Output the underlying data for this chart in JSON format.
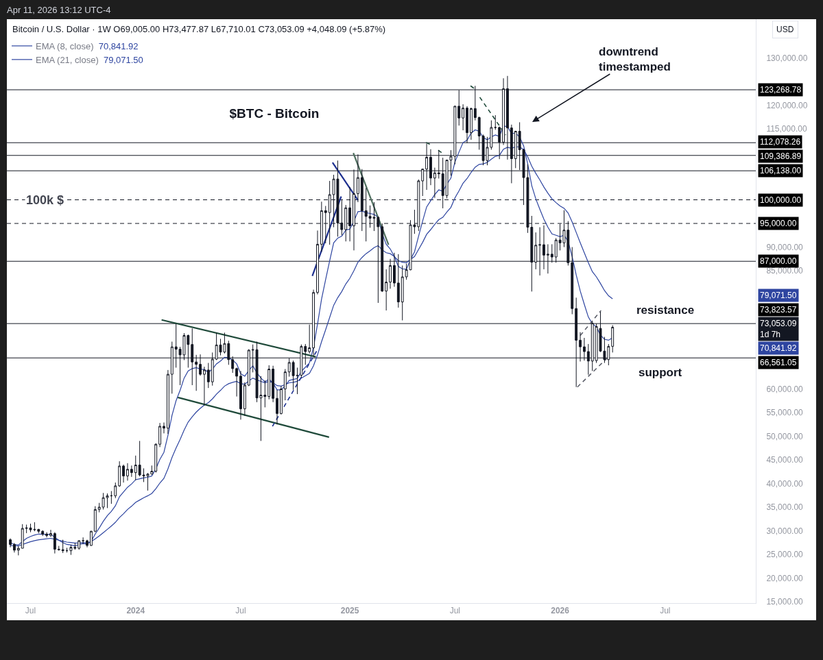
{
  "chart_data": {
    "type": "candlestick",
    "title": "$BTC - Bitcoin",
    "subtitle": "Bitcoin / U.S. Dollar · 1W O69,005.00 H73,477.87 L67,710.01 C73,053.09 +4,048.09 (+5.87%)",
    "ylabel": "USD",
    "legend": "top left",
    "annotations": [
      "Apr 11, 2026 13:12 UTC-4",
      {
        "text": "100k $",
        "x": "2023-07-28",
        "y": 100000
      },
      "downtrend\ntimestamped",
      "resistance",
      "support",
      "70,841.92",
      "79,071.50"
    ],
    "xlim": [
      "2023-05-23",
      "2026-12-10"
    ],
    "ylim": [
      14700,
      138200
    ],
    "xticks": [
      {
        "value": "2023-07-03",
        "label": "Jul"
      },
      {
        "value": "2024-01-01",
        "label": "2024"
      },
      {
        "value": "2024-07-01",
        "label": "Jul"
      },
      {
        "value": "2025-01-06",
        "label": "2025"
      },
      {
        "value": "2025-07-07",
        "label": "Jul"
      },
      {
        "value": "2026-01-05",
        "label": "2026"
      },
      {
        "value": "2026-07-06",
        "label": "Jul"
      }
    ],
    "yticks": [
      {
        "value": 130000,
        "label": "130,000.00"
      },
      {
        "value": 120000,
        "label": "120,000.00"
      },
      {
        "value": 115000,
        "label": "115,000.00"
      },
      {
        "value": 90000,
        "label": "90,000.00"
      },
      {
        "value": 85000,
        "label": "85,000.00"
      },
      {
        "value": 60000,
        "label": "60,000.00"
      },
      {
        "value": 55000,
        "label": "55,000.00"
      },
      {
        "value": 50000,
        "label": "50,000.00"
      },
      {
        "value": 45000,
        "label": "45,000.00"
      },
      {
        "value": 40000,
        "label": "40,000.00"
      },
      {
        "value": 35000,
        "label": "35,000.00"
      },
      {
        "value": 30000,
        "label": "30,000.00"
      },
      {
        "value": 25000,
        "label": "25,000.00"
      },
      {
        "value": 20000,
        "label": "20,000.00"
      },
      {
        "value": 15000,
        "label": "15,000.00"
      }
    ],
    "ref_lines": [
      {
        "axis": "y",
        "value": 123268.78,
        "label": "123,268.78"
      },
      {
        "axis": "y",
        "value": 112078.26,
        "label": "112,078.26"
      },
      {
        "axis": "y",
        "value": 109386.89,
        "label": "109,386.89"
      },
      {
        "axis": "y",
        "value": 106138.0,
        "label": "106,138.00"
      },
      {
        "axis": "y",
        "value": 100000.0,
        "label": "100,000.00",
        "line_style": "dashed"
      },
      {
        "axis": "y",
        "value": 95000.0,
        "label": "95,000.00",
        "line_style": "dashed"
      },
      {
        "axis": "y",
        "value": 87000.0,
        "label": "87,000.00"
      },
      {
        "axis": "y",
        "value": 73823.57,
        "label": "73,823.57"
      },
      {
        "axis": "y",
        "value": 66561.05,
        "label": "66,561.05"
      }
    ],
    "x": [
      "2023-05-29",
      "2023-06-05",
      "2023-06-12",
      "2023-06-19",
      "2023-06-26",
      "2023-07-03",
      "2023-07-10",
      "2023-07-17",
      "2023-07-24",
      "2023-07-31",
      "2023-08-07",
      "2023-08-14",
      "2023-08-21",
      "2023-08-28",
      "2023-09-04",
      "2023-09-11",
      "2023-09-18",
      "2023-09-25",
      "2023-10-02",
      "2023-10-09",
      "2023-10-16",
      "2023-10-23",
      "2023-10-30",
      "2023-11-06",
      "2023-11-13",
      "2023-11-20",
      "2023-11-27",
      "2023-12-04",
      "2023-12-11",
      "2023-12-18",
      "2023-12-25",
      "2024-01-01",
      "2024-01-08",
      "2024-01-15",
      "2024-01-22",
      "2024-01-29",
      "2024-02-05",
      "2024-02-12",
      "2024-02-19",
      "2024-02-26",
      "2024-03-04",
      "2024-03-11",
      "2024-03-18",
      "2024-03-25",
      "2024-04-01",
      "2024-04-08",
      "2024-04-15",
      "2024-04-22",
      "2024-04-29",
      "2024-05-06",
      "2024-05-13",
      "2024-05-20",
      "2024-05-27",
      "2024-06-03",
      "2024-06-10",
      "2024-06-17",
      "2024-06-24",
      "2024-07-01",
      "2024-07-08",
      "2024-07-15",
      "2024-07-22",
      "2024-07-29",
      "2024-08-05",
      "2024-08-12",
      "2024-08-19",
      "2024-08-26",
      "2024-09-02",
      "2024-09-09",
      "2024-09-16",
      "2024-09-23",
      "2024-09-30",
      "2024-10-07",
      "2024-10-14",
      "2024-10-21",
      "2024-10-28",
      "2024-11-04",
      "2024-11-11",
      "2024-11-18",
      "2024-11-25",
      "2024-12-02",
      "2024-12-09",
      "2024-12-16",
      "2024-12-23",
      "2024-12-30",
      "2025-01-06",
      "2025-01-13",
      "2025-01-20",
      "2025-01-27",
      "2025-02-03",
      "2025-02-10",
      "2025-02-17",
      "2025-02-24",
      "2025-03-03",
      "2025-03-10",
      "2025-03-17",
      "2025-03-24",
      "2025-03-31",
      "2025-04-07",
      "2025-04-14",
      "2025-04-21",
      "2025-04-28",
      "2025-05-05",
      "2025-05-12",
      "2025-05-19",
      "2025-05-26",
      "2025-06-02",
      "2025-06-09",
      "2025-06-16",
      "2025-06-23",
      "2025-06-30",
      "2025-07-07",
      "2025-07-14",
      "2025-07-21",
      "2025-07-28",
      "2025-08-04",
      "2025-08-11",
      "2025-08-18",
      "2025-08-25",
      "2025-09-01",
      "2025-09-08",
      "2025-09-15",
      "2025-09-22",
      "2025-09-29",
      "2025-10-06",
      "2025-10-13",
      "2025-10-20",
      "2025-10-27",
      "2025-11-03",
      "2025-11-10",
      "2025-11-17",
      "2025-11-24",
      "2025-12-01",
      "2025-12-08",
      "2025-12-15",
      "2025-12-22",
      "2025-12-29",
      "2026-01-05",
      "2026-01-12",
      "2026-01-19",
      "2026-01-26",
      "2026-02-02",
      "2026-02-09",
      "2026-02-16",
      "2026-02-23",
      "2026-03-02",
      "2026-03-09",
      "2026-03-16",
      "2026-03-23",
      "2026-03-30",
      "2026-04-06"
    ],
    "ohlc": [
      [
        28100,
        28400,
        26500,
        27100
      ],
      [
        27100,
        27400,
        25400,
        25900
      ],
      [
        25900,
        26800,
        24800,
        26300
      ],
      [
        26300,
        31400,
        26300,
        30500
      ],
      [
        30500,
        31300,
        29500,
        30600
      ],
      [
        30600,
        31500,
        29700,
        30200
      ],
      [
        30200,
        31800,
        29900,
        30300
      ],
      [
        30300,
        30400,
        29500,
        29900
      ],
      [
        29900,
        30100,
        28900,
        29300
      ],
      [
        29300,
        29700,
        28600,
        29000
      ],
      [
        29000,
        30200,
        28700,
        29400
      ],
      [
        29400,
        29700,
        25200,
        26100
      ],
      [
        26100,
        26800,
        25800,
        26000
      ],
      [
        26000,
        28100,
        25300,
        25800
      ],
      [
        25800,
        26400,
        25400,
        25800
      ],
      [
        25800,
        27000,
        24900,
        26500
      ],
      [
        26500,
        27400,
        26000,
        26300
      ],
      [
        26300,
        28000,
        26000,
        27900
      ],
      [
        27900,
        28600,
        27200,
        27900
      ],
      [
        27900,
        28100,
        26500,
        26900
      ],
      [
        26900,
        30000,
        26800,
        29900
      ],
      [
        29900,
        35200,
        29700,
        34500
      ],
      [
        34500,
        35900,
        33900,
        35000
      ],
      [
        35000,
        38000,
        34500,
        37000
      ],
      [
        37000,
        37900,
        34800,
        37400
      ],
      [
        37400,
        38400,
        35700,
        37400
      ],
      [
        37400,
        40200,
        36900,
        39500
      ],
      [
        39500,
        44700,
        39300,
        43700
      ],
      [
        43700,
        44000,
        40200,
        41600
      ],
      [
        41600,
        44300,
        40600,
        43000
      ],
      [
        43000,
        43800,
        41400,
        42300
      ],
      [
        42300,
        45900,
        40700,
        43900
      ],
      [
        43900,
        49000,
        41500,
        41800
      ],
      [
        41800,
        43200,
        40300,
        41600
      ],
      [
        41600,
        42200,
        38500,
        42000
      ],
      [
        42000,
        43800,
        41900,
        42600
      ],
      [
        42600,
        48500,
        42300,
        48300
      ],
      [
        48300,
        52800,
        47700,
        52100
      ],
      [
        52100,
        52900,
        50600,
        51700
      ],
      [
        51700,
        64000,
        50500,
        63100
      ],
      [
        63100,
        70000,
        59000,
        68900
      ],
      [
        68900,
        73800,
        64500,
        68400
      ],
      [
        68400,
        68900,
        60800,
        67200
      ],
      [
        67200,
        71800,
        66100,
        71300
      ],
      [
        71300,
        71500,
        64500,
        69400
      ],
      [
        69400,
        72800,
        60800,
        65700
      ],
      [
        65700,
        67200,
        59600,
        65200
      ],
      [
        65200,
        67300,
        62800,
        63100
      ],
      [
        63100,
        64700,
        56500,
        64000
      ],
      [
        64000,
        65500,
        60200,
        61500
      ],
      [
        61500,
        67700,
        60700,
        66300
      ],
      [
        66300,
        71900,
        66100,
        69300
      ],
      [
        69300,
        70600,
        67100,
        67800
      ],
      [
        67800,
        71900,
        67500,
        69600
      ],
      [
        69600,
        70200,
        65100,
        66200
      ],
      [
        66200,
        66900,
        63400,
        64300
      ],
      [
        64300,
        64500,
        58400,
        62700
      ],
      [
        62700,
        63800,
        53500,
        55800
      ],
      [
        55800,
        61400,
        54300,
        60800
      ],
      [
        60800,
        68400,
        60600,
        68200
      ],
      [
        68200,
        69400,
        63500,
        68300
      ],
      [
        68300,
        70000,
        57200,
        58100
      ],
      [
        58100,
        62700,
        49000,
        58700
      ],
      [
        58700,
        61800,
        56100,
        58400
      ],
      [
        58400,
        65000,
        57800,
        64200
      ],
      [
        64200,
        64900,
        57200,
        58000
      ],
      [
        58000,
        59800,
        52500,
        54800
      ],
      [
        54800,
        60600,
        54600,
        60000
      ],
      [
        60000,
        64200,
        57600,
        63600
      ],
      [
        63600,
        66500,
        62600,
        65600
      ],
      [
        65600,
        66000,
        59800,
        62800
      ],
      [
        62800,
        64500,
        58900,
        62900
      ],
      [
        62900,
        69400,
        62400,
        69000
      ],
      [
        69000,
        69500,
        65100,
        67900
      ],
      [
        67900,
        73600,
        67500,
        68700
      ],
      [
        68700,
        81000,
        66800,
        80400
      ],
      [
        80400,
        93500,
        80000,
        90600
      ],
      [
        90600,
        99600,
        89000,
        97700
      ],
      [
        97700,
        98700,
        90800,
        97300
      ],
      [
        97300,
        104000,
        90500,
        101100
      ],
      [
        101100,
        105300,
        94200,
        104400
      ],
      [
        104400,
        108300,
        92200,
        95100
      ],
      [
        95100,
        99900,
        92500,
        93700
      ],
      [
        93700,
        98900,
        91200,
        98300
      ],
      [
        98300,
        102700,
        91200,
        94500
      ],
      [
        94500,
        106400,
        89300,
        101300
      ],
      [
        101300,
        109600,
        99500,
        104700
      ],
      [
        104700,
        106500,
        93400,
        97700
      ],
      [
        97700,
        102500,
        91200,
        96500
      ],
      [
        96500,
        98800,
        94100,
        96100
      ],
      [
        96100,
        99500,
        93400,
        96300
      ],
      [
        96300,
        96500,
        78200,
        94300
      ],
      [
        94300,
        95000,
        80500,
        80700
      ],
      [
        80700,
        85300,
        76600,
        82600
      ],
      [
        82600,
        87500,
        81200,
        86100
      ],
      [
        86100,
        88800,
        81600,
        82400
      ],
      [
        82400,
        88500,
        77200,
        78400
      ],
      [
        78400,
        86100,
        74500,
        83700
      ],
      [
        83700,
        86500,
        83100,
        85200
      ],
      [
        85200,
        95700,
        85100,
        94700
      ],
      [
        94700,
        97900,
        92800,
        94300
      ],
      [
        94300,
        104300,
        93400,
        104000
      ],
      [
        104000,
        106600,
        100800,
        106500
      ],
      [
        106500,
        111900,
        102100,
        109000
      ],
      [
        109000,
        110700,
        103100,
        104600
      ],
      [
        104600,
        106800,
        100400,
        105700
      ],
      [
        105700,
        110500,
        104500,
        105500
      ],
      [
        105500,
        108900,
        98200,
        100900
      ],
      [
        100900,
        108500,
        100300,
        108400
      ],
      [
        108400,
        110500,
        105100,
        109200
      ],
      [
        109200,
        119900,
        107500,
        119800
      ],
      [
        119800,
        123200,
        115700,
        117300
      ],
      [
        117300,
        120200,
        114700,
        119400
      ],
      [
        119400,
        119800,
        112000,
        114200
      ],
      [
        114200,
        119500,
        112700,
        119300
      ],
      [
        119300,
        124100,
        116800,
        117400
      ],
      [
        117400,
        117600,
        110600,
        113500
      ],
      [
        113500,
        113800,
        107300,
        108300
      ],
      [
        108300,
        113300,
        107300,
        111100
      ],
      [
        111100,
        116800,
        110600,
        115300
      ],
      [
        115300,
        117900,
        114800,
        115300
      ],
      [
        115300,
        115500,
        108600,
        112200
      ],
      [
        112200,
        125700,
        111600,
        123500
      ],
      [
        123500,
        126200,
        108500,
        115200
      ],
      [
        115200,
        115900,
        103500,
        108700
      ],
      [
        108700,
        114600,
        106700,
        114500
      ],
      [
        114500,
        116400,
        106300,
        110600
      ],
      [
        110600,
        110800,
        98900,
        104700
      ],
      [
        104700,
        107500,
        93000,
        94200
      ],
      [
        94200,
        96600,
        80600,
        86800
      ],
      [
        86800,
        93100,
        85300,
        90400
      ],
      [
        90400,
        94200,
        84000,
        90500
      ],
      [
        90500,
        94600,
        85300,
        88300
      ],
      [
        88300,
        90600,
        84400,
        88500
      ],
      [
        88500,
        90600,
        86700,
        87900
      ],
      [
        87900,
        91900,
        86700,
        91500
      ],
      [
        91500,
        94900,
        89300,
        90900
      ],
      [
        90900,
        97800,
        90000,
        93600
      ],
      [
        93600,
        95500,
        86100,
        86700
      ],
      [
        86700,
        90000,
        75800,
        77000
      ],
      [
        77000,
        79300,
        60400,
        70300
      ],
      [
        70300,
        72000,
        65800,
        68900
      ],
      [
        68900,
        70800,
        66000,
        67900
      ],
      [
        67900,
        69500,
        63000,
        65900
      ],
      [
        65900,
        74300,
        63800,
        73900
      ],
      [
        66000,
        73800,
        65500,
        73200
      ],
      [
        72800,
        76300,
        67800,
        68000
      ],
      [
        68000,
        71000,
        65500,
        66200
      ],
      [
        66200,
        69500,
        65000,
        69005
      ],
      [
        69005,
        73477.87,
        67710.01,
        73053.09
      ]
    ],
    "value_labels": [
      null,
      null,
      null,
      null,
      null,
      null,
      null,
      null,
      null,
      null,
      null,
      null,
      null,
      null,
      null,
      null,
      null,
      null,
      null,
      null,
      null,
      null,
      null,
      null,
      null,
      null,
      null,
      null,
      null,
      null,
      null,
      null,
      null,
      null,
      null,
      null,
      null,
      null,
      null,
      null,
      null,
      null,
      null,
      null,
      null,
      null,
      null,
      null,
      null,
      null,
      null,
      null,
      null,
      null,
      null,
      null,
      null,
      null,
      null,
      null,
      null,
      null,
      null,
      null,
      null,
      null,
      null,
      null,
      null,
      null,
      null,
      null,
      null,
      null,
      null,
      null,
      null,
      null,
      null,
      null,
      null,
      null,
      null,
      null,
      null,
      null,
      null,
      null,
      null,
      null,
      null,
      null,
      null,
      null,
      null,
      null,
      null,
      null,
      null,
      null,
      null,
      null,
      null,
      null,
      null,
      null,
      null,
      null,
      null,
      null,
      null,
      null,
      null,
      null,
      null,
      null,
      null,
      null,
      null,
      null,
      null,
      null,
      null,
      null,
      null,
      null,
      null,
      null,
      null,
      null,
      null,
      null,
      null,
      null,
      null,
      null,
      null,
      null,
      null,
      null,
      null,
      null,
      null,
      null,
      null,
      null,
      null,
      null,
      null,
      "73,053.09\n1d 7h"
    ],
    "series": [
      {
        "type": "line",
        "name": "EMA (8, close)",
        "color": "#2e45a0",
        "values": [
          27500,
          27100,
          27000,
          27700,
          28400,
          28800,
          29100,
          29300,
          29300,
          29200,
          29300,
          28600,
          28000,
          27500,
          27100,
          27000,
          26800,
          27100,
          27300,
          27200,
          27800,
          29300,
          30600,
          32000,
          33200,
          34100,
          35300,
          37200,
          38200,
          39200,
          39900,
          40800,
          41000,
          41200,
          41300,
          41600,
          43100,
          45100,
          46600,
          50200,
          54400,
          57500,
          59700,
          62300,
          63800,
          64300,
          64500,
          64200,
          64100,
          63500,
          64200,
          65300,
          65900,
          66700,
          66600,
          66100,
          65300,
          63200,
          62700,
          63900,
          64900,
          63400,
          62300,
          61500,
          62100,
          61200,
          59800,
          59800,
          60700,
          61800,
          62000,
          62200,
          63700,
          64600,
          65500,
          68800,
          73700,
          79000,
          83100,
          87100,
          90900,
          91900,
          92300,
          93600,
          93800,
          95500,
          97500,
          97600,
          97300,
          97100,
          96900,
          96300,
          92800,
          90600,
          89600,
          88000,
          85900,
          85400,
          85300,
          87400,
          89000,
          92300,
          95500,
          98500,
          99800,
          101100,
          102100,
          101800,
          103300,
          104600,
          108000,
          110100,
          112100,
          112600,
          114100,
          114800,
          114500,
          113200,
          112700,
          113300,
          113700,
          113400,
          115600,
          115500,
          114000,
          114100,
          113300,
          111400,
          107600,
          103000,
          100200,
          98000,
          95900,
          94200,
          92800,
          92500,
          92200,
          92500,
          91200,
          88000,
          84100,
          80700,
          77900,
          75200,
          73800,
          73100,
          71400,
          70500,
          70300,
          70841.92
        ]
      },
      {
        "type": "line",
        "name": "EMA (21, close)",
        "color": "#2e45a0",
        "values": [
          26900,
          26800,
          26800,
          27100,
          27400,
          27700,
          27900,
          28100,
          28200,
          28300,
          28400,
          28200,
          28000,
          27800,
          27600,
          27500,
          27400,
          27400,
          27500,
          27400,
          27700,
          28300,
          28900,
          29600,
          30300,
          31000,
          31800,
          32800,
          33600,
          34500,
          35200,
          36000,
          36500,
          37000,
          37400,
          37900,
          38900,
          40100,
          41100,
          43100,
          45500,
          47500,
          49300,
          51300,
          53000,
          54100,
          55100,
          55900,
          56600,
          57100,
          57900,
          58900,
          59700,
          60600,
          61100,
          61400,
          61600,
          61100,
          61000,
          61700,
          62300,
          61900,
          61600,
          61300,
          61600,
          61300,
          60700,
          60600,
          60900,
          61300,
          61400,
          61600,
          62300,
          62800,
          63300,
          64900,
          67200,
          70000,
          72500,
          75100,
          77700,
          79300,
          80600,
          82200,
          83400,
          85000,
          86800,
          87800,
          88600,
          89200,
          89900,
          90300,
          89400,
          88800,
          88600,
          88000,
          87100,
          86800,
          86700,
          87400,
          88000,
          89500,
          91000,
          92700,
          93700,
          94800,
          95800,
          96300,
          97400,
          98400,
          100400,
          101900,
          103500,
          104500,
          105800,
          106900,
          107500,
          107600,
          107900,
          108600,
          109200,
          109400,
          110700,
          111100,
          110900,
          111200,
          111200,
          110600,
          109100,
          107100,
          105600,
          104200,
          102700,
          101400,
          100200,
          99400,
          98700,
          98200,
          97200,
          95300,
          93100,
          90900,
          88800,
          86700,
          84800,
          83700,
          82300,
          80800,
          79700,
          79071.5
        ]
      },
      {
        "type": "line",
        "color": "#1f4a3a",
        "x": [
          "2024-02-15",
          "2024-11-08"
        ],
        "values": [
          74600,
          66800
        ]
      },
      {
        "type": "line",
        "color": "#1f4a3a",
        "x": [
          "2024-03-14",
          "2024-12-01"
        ],
        "values": [
          58200,
          49800
        ]
      },
      {
        "type": "line",
        "color": "#1c2f8f",
        "x": [
          "2024-11-02",
          "2024-12-22"
        ],
        "values": [
          83900,
          100700
        ]
      },
      {
        "type": "line",
        "color": "#1c2f8f",
        "x": [
          "2024-12-07",
          "2025-01-20"
        ],
        "values": [
          107900,
          99900
        ]
      },
      {
        "type": "line",
        "color": "#4f6f5f",
        "x": [
          "2025-01-12",
          "2025-03-14"
        ],
        "values": [
          109900,
          90500
        ]
      },
      {
        "type": "line",
        "color": "#1c2f8f",
        "line_style": "dashed",
        "x": [
          "2024-08-25",
          "2024-11-10"
        ],
        "values": [
          52100,
          68100
        ]
      },
      {
        "type": "line",
        "color": "#1f4a3a",
        "line_style": "dashed",
        "x": [
          "2025-08-19",
          "2025-10-03"
        ],
        "values": [
          121700,
          113700
        ]
      },
      {
        "type": "line",
        "color": "#1f4a3a",
        "line_style": "dashed",
        "x": [
          "2025-05-18",
          "2025-05-27"
        ],
        "values": [
          112100,
          111600
        ]
      },
      {
        "type": "line",
        "color": "#1f4a3a",
        "line_style": "dashed",
        "x": [
          "2025-06-08",
          "2025-06-18"
        ],
        "values": [
          110500,
          109600
        ]
      },
      {
        "type": "line",
        "color": "#1f4a3a",
        "line_style": "dashed",
        "x": [
          "2025-08-03",
          "2025-08-11"
        ],
        "values": [
          124100,
          123400
        ]
      },
      {
        "type": "line",
        "color": "#5d606b",
        "line_style": "dashed",
        "x": [
          "2026-02-09",
          "2026-03-17"
        ],
        "values": [
          71300,
          76600
        ]
      },
      {
        "type": "line",
        "color": "#5d606b",
        "line_style": "dashed",
        "x": [
          "2026-02-04",
          "2026-03-29"
        ],
        "values": [
          60400,
          66700
        ]
      }
    ]
  }
}
